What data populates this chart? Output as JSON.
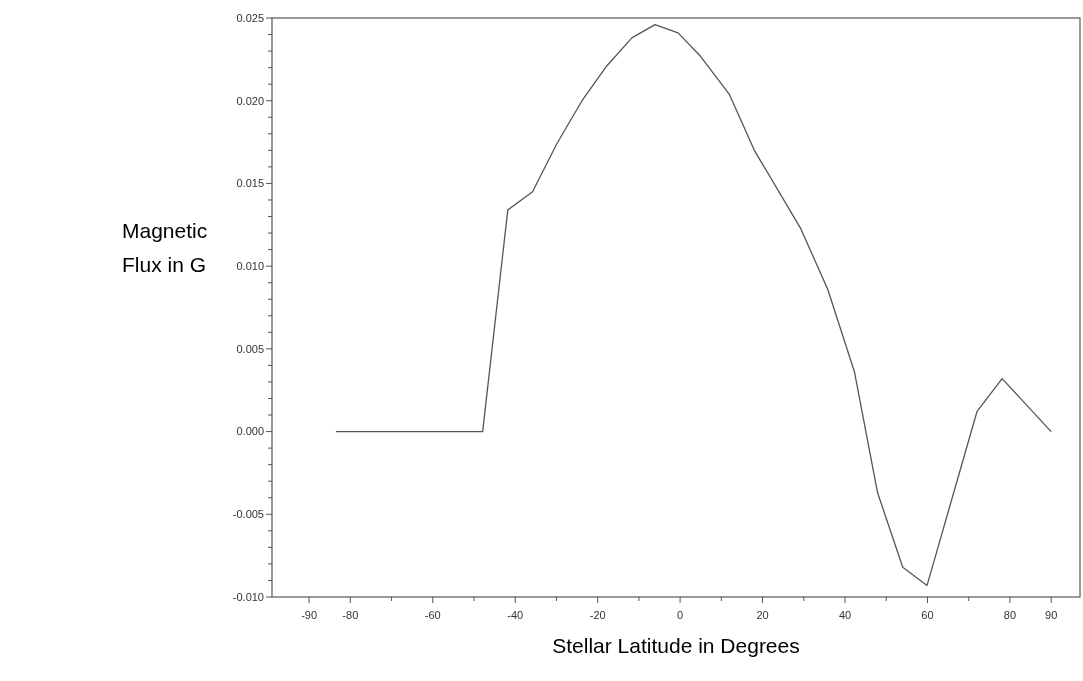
{
  "chart_data": {
    "type": "line",
    "xlabel": "Stellar Latitude in Degrees",
    "ylabel": "Magnetic\nFlux in G",
    "x": [
      -83.5,
      -47.9,
      -41.8,
      -35.8,
      -29.9,
      -23.8,
      -17.8,
      -11.7,
      -6.1,
      -0.5,
      4.9,
      11.9,
      18.0,
      29.2,
      35.8,
      42.3,
      47.9,
      54.0,
      59.9,
      72.0,
      78.1,
      90
    ],
    "series": [
      {
        "color": "#555555",
        "values": [
          0,
          0,
          0.0134,
          0.0145,
          0.0174,
          0.02,
          0.0221,
          0.0238,
          0.0246,
          0.0241,
          0.0227,
          0.0204,
          0.017,
          0.0123,
          0.0086,
          0.0036,
          -0.0037,
          -0.0082,
          -0.0093,
          0.0012,
          0.0032,
          0
        ]
      }
    ],
    "xlim": [
      -99,
      97
    ],
    "ylim": [
      -0.01,
      0.025
    ],
    "xticks": [
      {
        "value": -90,
        "label": "-90"
      },
      {
        "value": -80,
        "label": "-80"
      },
      {
        "value": -70,
        "label": null
      },
      {
        "value": -60,
        "label": "-60"
      },
      {
        "value": -50,
        "label": null
      },
      {
        "value": -40,
        "label": "-40"
      },
      {
        "value": -30,
        "label": null
      },
      {
        "value": -20,
        "label": "-20"
      },
      {
        "value": -10,
        "label": null
      },
      0,
      {
        "value": 10,
        "label": null
      },
      20,
      {
        "value": 30,
        "label": null
      },
      40,
      {
        "value": 50,
        "label": null
      },
      60,
      {
        "value": 70,
        "label": null
      },
      80,
      90
    ],
    "yticks": [
      {
        "value": -0.01,
        "label": "-0.010"
      },
      {
        "value": -0.009,
        "label": null
      },
      {
        "value": -0.008,
        "label": null
      },
      {
        "value": -0.007,
        "label": null
      },
      {
        "value": -0.006,
        "label": null
      },
      {
        "value": -0.005,
        "label": "-0.005"
      },
      {
        "value": -0.004,
        "label": null
      },
      {
        "value": -0.003,
        "label": null
      },
      {
        "value": -0.002,
        "label": null
      },
      {
        "value": -0.001,
        "label": null
      },
      {
        "value": 0,
        "label": "0.000"
      },
      {
        "value": 0.001,
        "label": null
      },
      {
        "value": 0.002,
        "label": null
      },
      {
        "value": 0.003,
        "label": null
      },
      {
        "value": 0.004,
        "label": null
      },
      {
        "value": 0.005,
        "label": "0.005"
      },
      {
        "value": 0.006,
        "label": null
      },
      {
        "value": 0.007,
        "label": null
      },
      {
        "value": 0.008,
        "label": null
      },
      {
        "value": 0.009,
        "label": null
      },
      {
        "value": 0.01,
        "label": "0.010"
      },
      {
        "value": 0.011,
        "label": null
      },
      {
        "value": 0.012,
        "label": null
      },
      {
        "value": 0.013,
        "label": null
      },
      {
        "value": 0.014,
        "label": null
      },
      {
        "value": 0.015,
        "label": "0.015"
      },
      {
        "value": 0.016,
        "label": null
      },
      {
        "value": 0.017,
        "label": null
      },
      {
        "value": 0.018,
        "label": null
      },
      {
        "value": 0.019,
        "label": null
      },
      {
        "value": 0.02,
        "label": "0.020"
      },
      {
        "value": 0.021,
        "label": null
      },
      {
        "value": 0.022,
        "label": null
      },
      {
        "value": 0.023,
        "label": null
      },
      {
        "value": 0.024,
        "label": null
      },
      {
        "value": 0.025,
        "label": "0.025"
      }
    ],
    "grid": false,
    "marker": "none",
    "line_style": "solid"
  }
}
